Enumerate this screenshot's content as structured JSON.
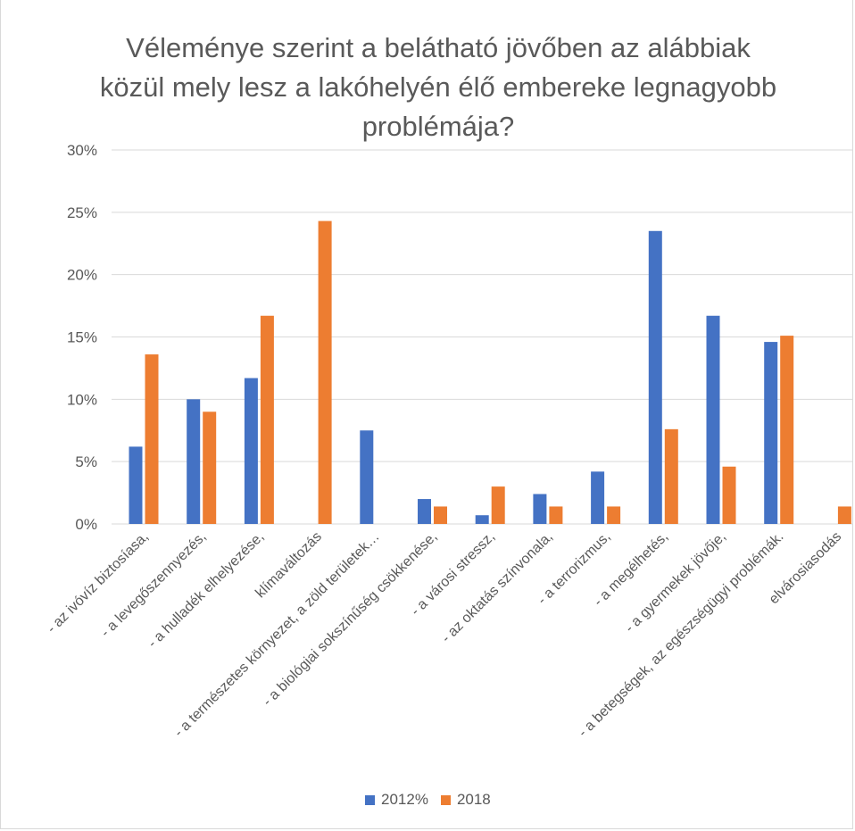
{
  "title": "Véleménye szerint a belátható jövőben az alábbiak közül mely lesz a lakóhelyén élő embereke legnagyobb problémája?",
  "colors": {
    "series_2012": "#4472C4",
    "series_2018": "#ED7D31",
    "grid": "#d9d9d9",
    "text": "#595959"
  },
  "chart_data": {
    "type": "bar",
    "title": "Véleménye szerint a belátható jövőben az alábbiak közül mely lesz a lakóhelyén élő embereke legnagyobb problémája?",
    "categories": [
      "- az ivóvíz biztosíasa,",
      "- a levegőszennyezés,",
      "- a hulladék elhelyezése,",
      "klímaváltozás",
      "- a természetes környezet, a zöld területek…",
      "- a biológiai sokszínűség csökkenése,",
      "- a városi stressz,",
      "- az oktatás színvonala,",
      "- a terrorizmus,",
      "- a megélhetés,",
      "- a gyermekek jövője,",
      "- a betegségek, az egészségügyi problémák.",
      "elvárosiasodás"
    ],
    "series": [
      {
        "name": "2012%",
        "values": [
          6.2,
          10.0,
          11.7,
          0,
          7.5,
          2.0,
          0.7,
          2.4,
          4.2,
          23.5,
          16.7,
          14.6,
          0
        ]
      },
      {
        "name": "2018",
        "values": [
          13.6,
          9.0,
          16.7,
          24.3,
          0,
          1.4,
          3.0,
          1.4,
          1.4,
          7.6,
          4.6,
          15.1,
          1.4
        ]
      }
    ],
    "ylim": [
      0,
      30
    ],
    "yticks": [
      "0%",
      "5%",
      "10%",
      "15%",
      "20%",
      "25%",
      "30%"
    ],
    "ytick_values": [
      0,
      5,
      10,
      15,
      20,
      25,
      30
    ],
    "grid": true,
    "legend_position": "bottom"
  }
}
